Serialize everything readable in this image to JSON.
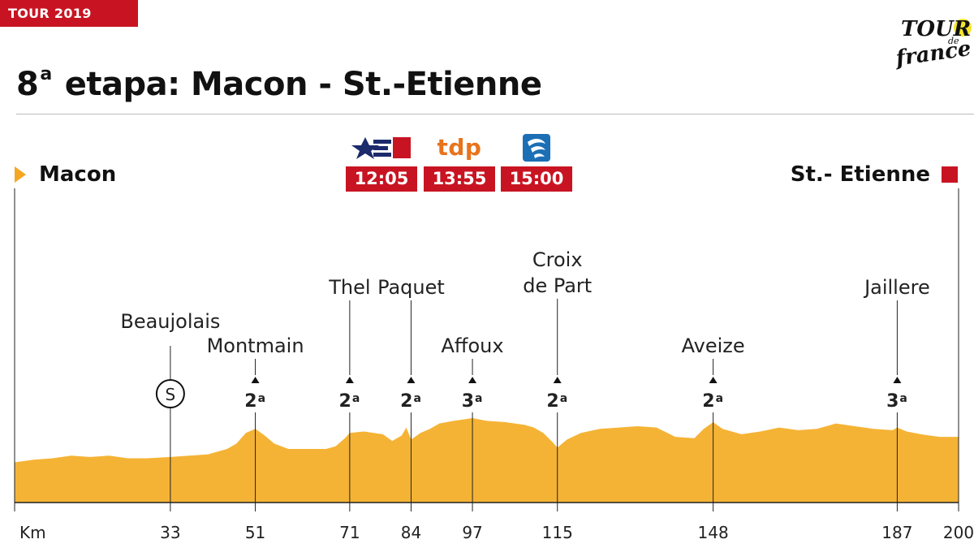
{
  "header": {
    "tag": "TOUR 2019",
    "logo_text": "TOUR de france"
  },
  "title": {
    "ordinal": "8",
    "ordinal_suffix": "a",
    "text": "etapa: Macon - St.-Etienne"
  },
  "start": {
    "label": "Macon"
  },
  "finish": {
    "label": "St.- Etienne"
  },
  "broadcasters": [
    {
      "icon": "e1-logo-icon",
      "logo_text": "E1",
      "time": "12:05"
    },
    {
      "icon": "tdp-logo-icon",
      "logo_text": "tdp",
      "time": "13:55"
    },
    {
      "icon": "channel-logo-icon",
      "logo_text": "",
      "time": "15:00"
    }
  ],
  "colors": {
    "profile_fill": "#F5B335",
    "accent_red": "#C81422",
    "start_marker": "#F5A623",
    "tdp_orange": "#E8731D",
    "navy": "#1B2A6B",
    "blue": "#1C6FB5",
    "logo_yellow": "#F5E62B"
  },
  "chart_data": {
    "type": "area",
    "xlabel": "Km",
    "xlim": [
      0,
      200
    ],
    "x_ticks": [
      {
        "km": 33,
        "label": "33"
      },
      {
        "km": 51,
        "label": "51"
      },
      {
        "km": 71,
        "label": "71"
      },
      {
        "km": 84,
        "label": "84"
      },
      {
        "km": 97,
        "label": "97"
      },
      {
        "km": 115,
        "label": "115"
      },
      {
        "km": 148,
        "label": "148"
      },
      {
        "km": 187,
        "label": "187"
      },
      {
        "km": 200,
        "label": "200"
      }
    ],
    "profile": {
      "x": [
        0,
        4,
        8,
        12,
        16,
        20,
        24,
        28,
        33,
        37,
        41,
        45,
        47,
        49,
        51,
        53,
        55,
        58,
        62,
        66,
        68,
        70,
        71,
        74,
        78,
        80,
        82,
        83,
        84,
        86,
        88,
        90,
        93,
        95,
        97,
        100,
        104,
        108,
        110,
        112,
        114,
        115,
        117,
        120,
        124,
        128,
        132,
        136,
        140,
        144,
        146,
        148,
        150,
        154,
        158,
        162,
        166,
        170,
        174,
        178,
        182,
        186,
        187,
        189,
        192,
        196,
        200
      ],
      "y": [
        0.3,
        0.32,
        0.33,
        0.35,
        0.34,
        0.35,
        0.33,
        0.33,
        0.34,
        0.35,
        0.36,
        0.4,
        0.44,
        0.52,
        0.55,
        0.5,
        0.44,
        0.4,
        0.4,
        0.4,
        0.42,
        0.48,
        0.52,
        0.53,
        0.51,
        0.46,
        0.5,
        0.56,
        0.47,
        0.52,
        0.55,
        0.59,
        0.61,
        0.62,
        0.63,
        0.61,
        0.6,
        0.58,
        0.56,
        0.52,
        0.45,
        0.41,
        0.47,
        0.52,
        0.55,
        0.56,
        0.57,
        0.56,
        0.49,
        0.48,
        0.55,
        0.6,
        0.55,
        0.51,
        0.53,
        0.56,
        0.54,
        0.55,
        0.59,
        0.57,
        0.55,
        0.54,
        0.56,
        0.53,
        0.51,
        0.49,
        0.49
      ]
    },
    "climbs": [
      {
        "km": 51,
        "name": [
          "Montmain"
        ],
        "category": "2",
        "suffix": "a"
      },
      {
        "km": 71,
        "name": [
          "Thel"
        ],
        "category": "2",
        "suffix": "a"
      },
      {
        "km": 84,
        "name": [
          "Paquet"
        ],
        "category": "2",
        "suffix": "a"
      },
      {
        "km": 97,
        "name": [
          "Affoux"
        ],
        "category": "3",
        "suffix": "a"
      },
      {
        "km": 115,
        "name": [
          "Croix",
          "de Part"
        ],
        "category": "2",
        "suffix": "a"
      },
      {
        "km": 148,
        "name": [
          "Aveize"
        ],
        "category": "2",
        "suffix": "a"
      },
      {
        "km": 187,
        "name": [
          "Jaillere"
        ],
        "category": "3",
        "suffix": "a"
      }
    ],
    "sprints": [
      {
        "km": 33,
        "name": "Beaujolais",
        "symbol": "S"
      }
    ]
  }
}
